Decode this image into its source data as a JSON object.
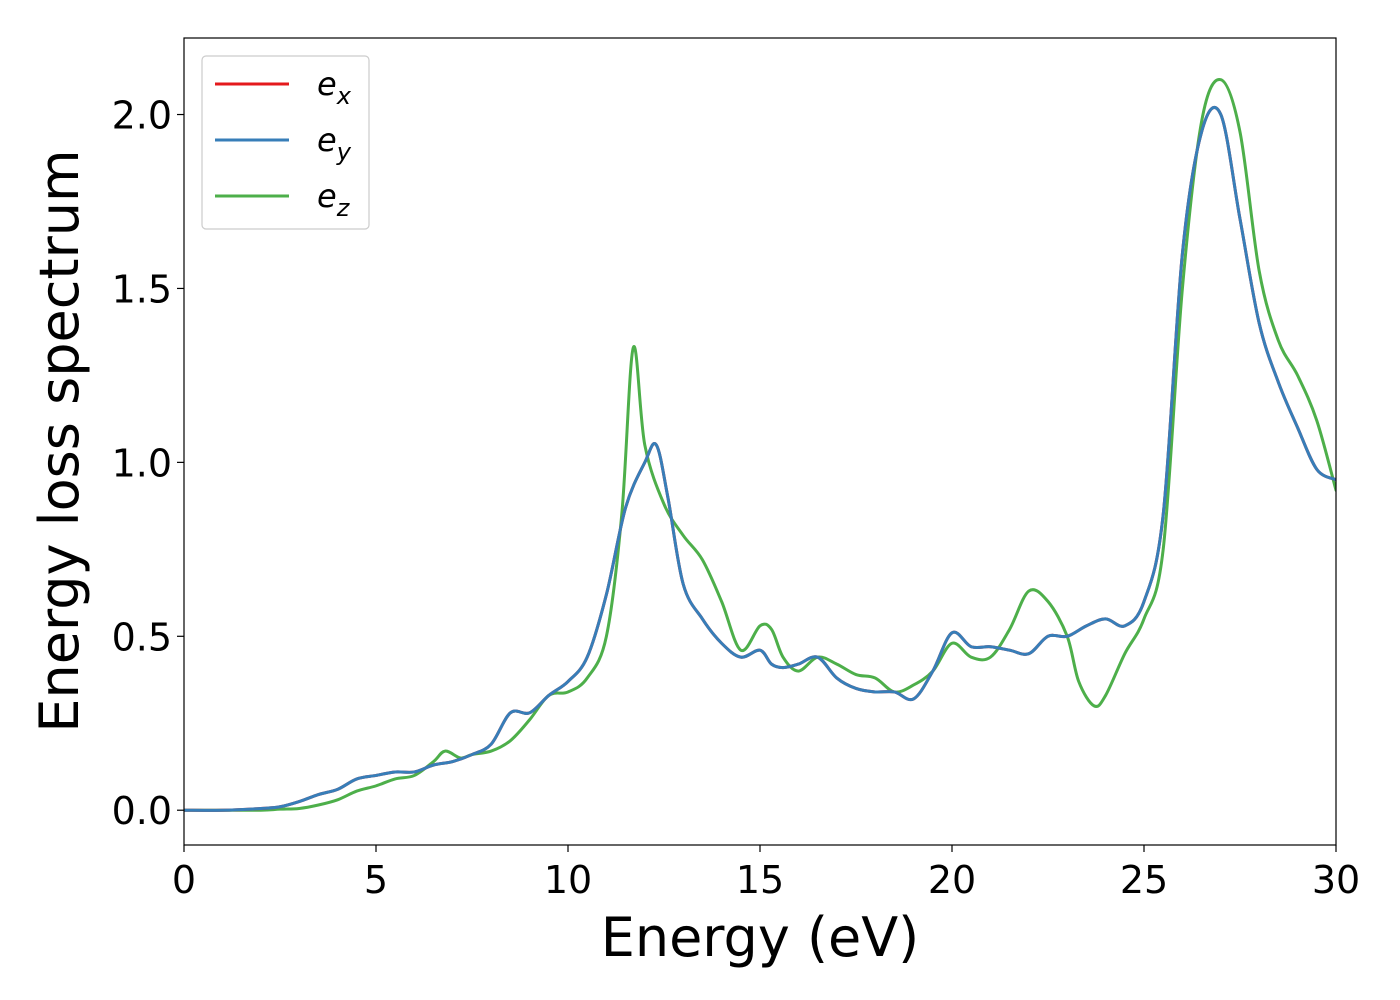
{
  "chart_data": {
    "type": "line",
    "xlabel": "Energy (eV)",
    "ylabel": "Energy loss spectrum",
    "xlim": [
      0,
      30
    ],
    "ylim": [
      -0.1,
      2.22
    ],
    "xticks": [
      "0",
      "5",
      "10",
      "15",
      "20",
      "25",
      "30"
    ],
    "yticks": [
      "0.0",
      "0.5",
      "1.0",
      "1.5",
      "2.0"
    ],
    "grid": false,
    "legend_position": "top-left",
    "series": [
      {
        "name": "e",
        "sub": "x",
        "color": "#e41a1c",
        "x": [
          0,
          1,
          2,
          2.5,
          3,
          3.5,
          4,
          4.5,
          5,
          5.5,
          6,
          6.5,
          7,
          7.5,
          8,
          8.5,
          9,
          9.5,
          10,
          10.5,
          11,
          11.5,
          12,
          12.3,
          12.6,
          13,
          13.5,
          14,
          14.5,
          15,
          15.3,
          15.6,
          16,
          16.5,
          17,
          17.5,
          18,
          18.5,
          19,
          19.5,
          20,
          20.5,
          21,
          21.5,
          22,
          22.5,
          23,
          23.5,
          24,
          24.5,
          25,
          25.5,
          26,
          26.5,
          27,
          27.5,
          28,
          28.5,
          29,
          29.5,
          30
        ],
        "y": [
          0,
          0,
          0.005,
          0.01,
          0.025,
          0.045,
          0.06,
          0.09,
          0.1,
          0.11,
          0.11,
          0.13,
          0.14,
          0.16,
          0.19,
          0.28,
          0.28,
          0.33,
          0.37,
          0.44,
          0.62,
          0.87,
          1.0,
          1.05,
          0.9,
          0.65,
          0.55,
          0.48,
          0.44,
          0.46,
          0.42,
          0.41,
          0.42,
          0.44,
          0.38,
          0.35,
          0.34,
          0.34,
          0.32,
          0.4,
          0.51,
          0.47,
          0.47,
          0.46,
          0.45,
          0.5,
          0.5,
          0.53,
          0.55,
          0.53,
          0.6,
          0.85,
          1.6,
          1.95,
          2.0,
          1.7,
          1.4,
          1.23,
          1.1,
          0.98,
          0.95
        ]
      },
      {
        "name": "e",
        "sub": "y",
        "color": "#377eb8",
        "x": [
          0,
          1,
          2,
          2.5,
          3,
          3.5,
          4,
          4.5,
          5,
          5.5,
          6,
          6.5,
          7,
          7.5,
          8,
          8.5,
          9,
          9.5,
          10,
          10.5,
          11,
          11.5,
          12,
          12.3,
          12.6,
          13,
          13.5,
          14,
          14.5,
          15,
          15.3,
          15.6,
          16,
          16.5,
          17,
          17.5,
          18,
          18.5,
          19,
          19.5,
          20,
          20.5,
          21,
          21.5,
          22,
          22.5,
          23,
          23.5,
          24,
          24.5,
          25,
          25.5,
          26,
          26.5,
          27,
          27.5,
          28,
          28.5,
          29,
          29.5,
          30
        ],
        "y": [
          0,
          0,
          0.005,
          0.01,
          0.025,
          0.045,
          0.06,
          0.09,
          0.1,
          0.11,
          0.11,
          0.13,
          0.14,
          0.16,
          0.19,
          0.28,
          0.28,
          0.33,
          0.37,
          0.44,
          0.62,
          0.87,
          1.0,
          1.05,
          0.9,
          0.65,
          0.55,
          0.48,
          0.44,
          0.46,
          0.42,
          0.41,
          0.42,
          0.44,
          0.38,
          0.35,
          0.34,
          0.34,
          0.32,
          0.4,
          0.51,
          0.47,
          0.47,
          0.46,
          0.45,
          0.5,
          0.5,
          0.53,
          0.55,
          0.53,
          0.6,
          0.85,
          1.6,
          1.95,
          2.0,
          1.7,
          1.4,
          1.23,
          1.1,
          0.98,
          0.95
        ]
      },
      {
        "name": "e",
        "sub": "z",
        "color": "#4daf4a",
        "x": [
          0,
          1,
          2,
          2.5,
          3,
          3.5,
          4,
          4.5,
          5,
          5.5,
          6,
          6.5,
          6.8,
          7.2,
          7.5,
          8,
          8.5,
          9,
          9.5,
          10,
          10.5,
          11,
          11.4,
          11.7,
          12,
          12.5,
          13,
          13.5,
          14,
          14.5,
          15,
          15.3,
          15.6,
          16,
          16.5,
          17,
          17.5,
          18,
          18.5,
          19,
          19.5,
          20,
          20.5,
          21,
          21.5,
          22,
          22.5,
          23,
          23.3,
          23.7,
          24,
          24.5,
          25,
          25.5,
          26,
          26.5,
          27,
          27.5,
          28,
          28.5,
          29,
          29.5,
          30
        ],
        "y": [
          0,
          0,
          0,
          0.003,
          0.005,
          0.015,
          0.03,
          0.055,
          0.07,
          0.09,
          0.1,
          0.14,
          0.17,
          0.15,
          0.16,
          0.17,
          0.2,
          0.26,
          0.33,
          0.34,
          0.38,
          0.5,
          0.85,
          1.33,
          1.05,
          0.88,
          0.79,
          0.72,
          0.6,
          0.46,
          0.53,
          0.52,
          0.44,
          0.4,
          0.44,
          0.42,
          0.39,
          0.38,
          0.34,
          0.36,
          0.4,
          0.48,
          0.44,
          0.44,
          0.52,
          0.63,
          0.6,
          0.5,
          0.37,
          0.3,
          0.33,
          0.45,
          0.55,
          0.75,
          1.5,
          1.98,
          2.1,
          1.95,
          1.55,
          1.35,
          1.25,
          1.12,
          0.92
        ]
      }
    ]
  }
}
